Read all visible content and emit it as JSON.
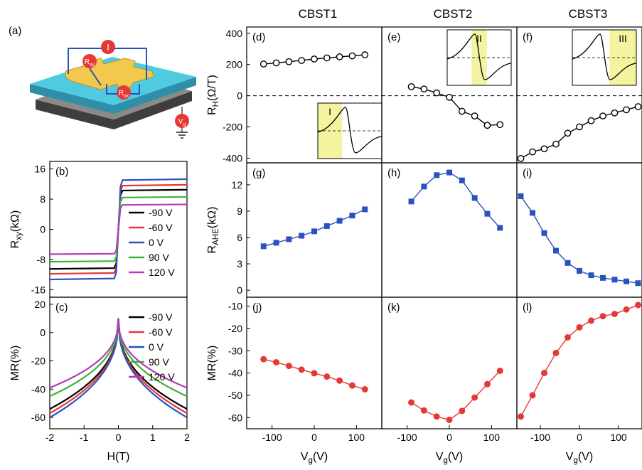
{
  "column_titles": [
    "CBST1",
    "CBST2",
    "CBST3"
  ],
  "panel_a": {
    "letter": "(a)",
    "labels": {
      "current": "I",
      "rxy": "R",
      "rxy_sub": "xy",
      "rxx": "R",
      "rxx_sub": "xx",
      "vg": "V",
      "vg_sub": "g"
    },
    "colors": {
      "top": "#4ecbe0",
      "side": "#2f8fa8",
      "base_top": "#8a8a8a",
      "base_side": "#3e3e3e",
      "hallbar": "#f2c94c",
      "wire": "#2a52be",
      "probe": "#e53935"
    }
  },
  "chart_data": [
    {
      "id": "b",
      "letter": "(b)",
      "type": "line",
      "ylabel": "R",
      "ylabel_sub": "xy",
      "ylabel_unit": "(kΩ)",
      "xlim": [
        -2,
        2
      ],
      "ylim": [
        -18,
        18
      ],
      "yticks": [
        -16,
        -8,
        0,
        8,
        16
      ],
      "ytick_labels": [
        "-16",
        "-8",
        "0",
        "8",
        "16"
      ],
      "legend": "right",
      "series": [
        {
          "name": "-90 V",
          "color": "#000000",
          "saturation": 10.5
        },
        {
          "name": "-60 V",
          "color": "#e53935",
          "saturation": 11.8
        },
        {
          "name": "0 V",
          "color": "#2a52be",
          "saturation": 13.3
        },
        {
          "name": "90 V",
          "color": "#3cb43c",
          "saturation": 8.6
        },
        {
          "name": "120 V",
          "color": "#b23cb4",
          "saturation": 6.6
        }
      ]
    },
    {
      "id": "c",
      "letter": "(c)",
      "type": "line",
      "ylabel": "MR(%)",
      "xlabel": "H(T)",
      "xlim": [
        -2,
        2
      ],
      "ylim": [
        -68,
        25
      ],
      "xticks": [
        -2,
        -1,
        0,
        1,
        2
      ],
      "xtick_labels": [
        "-2",
        "-1",
        "0",
        "1",
        "2"
      ],
      "yticks": [
        -60,
        -40,
        -20,
        0,
        20
      ],
      "ytick_labels": [
        "-60",
        "-40",
        "-20",
        "0",
        "20"
      ],
      "legend": "right",
      "series": [
        {
          "name": "-90 V",
          "color": "#000000",
          "edge": -54
        },
        {
          "name": "-60 V",
          "color": "#e53935",
          "edge": -57
        },
        {
          "name": "0 V",
          "color": "#2a52be",
          "edge": -60
        },
        {
          "name": "90 V",
          "color": "#3cb43c",
          "edge": -45
        },
        {
          "name": "120 V",
          "color": "#b23cb4",
          "edge": -39
        }
      ]
    },
    {
      "id": "d",
      "letter": "(d)",
      "type": "line",
      "marker": "open-circle",
      "color": "#000000",
      "ylabel": "R",
      "ylabel_sub": "H",
      "ylabel_unit": "(Ω/T)",
      "xlim": [
        -160,
        160
      ],
      "ylim": [
        -430,
        440
      ],
      "yticks": [
        -400,
        -200,
        0,
        200,
        400
      ],
      "ytick_labels": [
        "-400",
        "-200",
        "0",
        "200",
        "400"
      ],
      "x": [
        -120,
        -90,
        -60,
        -30,
        0,
        30,
        60,
        90,
        120
      ],
      "y": [
        203,
        210,
        218,
        226,
        235,
        242,
        249,
        255,
        262
      ],
      "inset": {
        "label": "I",
        "shade": "left"
      }
    },
    {
      "id": "e",
      "letter": "(e)",
      "type": "line",
      "marker": "open-circle",
      "color": "#000000",
      "xlim": [
        -160,
        160
      ],
      "ylim": [
        -430,
        440
      ],
      "x": [
        -90,
        -60,
        -30,
        0,
        30,
        60,
        90,
        120
      ],
      "y": [
        58,
        43,
        18,
        -10,
        -100,
        -130,
        -190,
        -185
      ],
      "inset": {
        "label": "II",
        "shade": "middle"
      }
    },
    {
      "id": "f",
      "letter": "(f)",
      "type": "line",
      "marker": "open-circle",
      "color": "#000000",
      "xlim": [
        -160,
        160
      ],
      "ylim": [
        -430,
        440
      ],
      "x": [
        -150,
        -120,
        -90,
        -60,
        -30,
        0,
        30,
        60,
        90,
        120,
        150
      ],
      "y": [
        -402,
        -360,
        -340,
        -310,
        -240,
        -200,
        -160,
        -130,
        -110,
        -90,
        -70
      ],
      "inset": {
        "label": "III",
        "shade": "right"
      }
    },
    {
      "id": "g",
      "letter": "(g)",
      "type": "line",
      "marker": "filled-square",
      "color": "#2a52be",
      "ylabel": "R",
      "ylabel_sub": "AHE",
      "ylabel_unit": "(kΩ)",
      "xlim": [
        -160,
        160
      ],
      "ylim": [
        -0.8,
        14.5
      ],
      "yticks": [
        0,
        3,
        6,
        9,
        12
      ],
      "ytick_labels": [
        "0",
        "3",
        "6",
        "9",
        "12"
      ],
      "x": [
        -120,
        -90,
        -60,
        -30,
        0,
        30,
        60,
        90,
        120
      ],
      "y": [
        5.0,
        5.4,
        5.8,
        6.2,
        6.7,
        7.3,
        7.9,
        8.5,
        9.2
      ]
    },
    {
      "id": "h",
      "letter": "(h)",
      "type": "line",
      "marker": "filled-square",
      "color": "#2a52be",
      "xlim": [
        -160,
        160
      ],
      "ylim": [
        -0.8,
        14.5
      ],
      "x": [
        -90,
        -60,
        -30,
        0,
        30,
        60,
        90,
        120
      ],
      "y": [
        10.1,
        11.8,
        13.1,
        13.4,
        12.5,
        10.5,
        8.7,
        7.1
      ]
    },
    {
      "id": "i",
      "letter": "(i)",
      "type": "line",
      "marker": "filled-square",
      "color": "#2a52be",
      "xlim": [
        -160,
        160
      ],
      "ylim": [
        -0.8,
        14.5
      ],
      "x": [
        -150,
        -120,
        -90,
        -60,
        -30,
        0,
        30,
        60,
        90,
        120,
        150
      ],
      "y": [
        10.7,
        8.8,
        6.5,
        4.5,
        3.1,
        2.2,
        1.7,
        1.4,
        1.2,
        1.0,
        0.8
      ]
    },
    {
      "id": "j",
      "letter": "(j)",
      "type": "line",
      "marker": "filled-circle",
      "color": "#e53935",
      "ylabel": "MR(%)",
      "xlabel": "V",
      "xlabel_sub": "g",
      "xlabel_unit": "(V)",
      "xlim": [
        -160,
        160
      ],
      "ylim": [
        -65,
        -6
      ],
      "yticks": [
        -60,
        -50,
        -40,
        -30,
        -20,
        -10
      ],
      "ytick_labels": [
        "-60",
        "-50",
        "-40",
        "-30",
        "-20",
        "-10"
      ],
      "xticks": [
        -100,
        0,
        100
      ],
      "xtick_labels": [
        "-100",
        "0",
        "100"
      ],
      "x": [
        -120,
        -90,
        -60,
        -30,
        0,
        30,
        60,
        90,
        120
      ],
      "y": [
        -33.8,
        -35.2,
        -36.8,
        -38.5,
        -40.1,
        -41.6,
        -43.4,
        -45.6,
        -47.3
      ]
    },
    {
      "id": "k",
      "letter": "(k)",
      "type": "line",
      "marker": "filled-circle",
      "color": "#e53935",
      "xlabel": "V",
      "xlabel_sub": "g",
      "xlabel_unit": "(V)",
      "xlim": [
        -160,
        160
      ],
      "ylim": [
        -65,
        -6
      ],
      "xticks": [
        -100,
        0,
        100
      ],
      "xtick_labels": [
        "-100",
        "0",
        "100"
      ],
      "x": [
        -90,
        -60,
        -30,
        0,
        30,
        60,
        90,
        120
      ],
      "y": [
        -53.2,
        -56.8,
        -59.5,
        -61.0,
        -57.0,
        -51.0,
        -45.0,
        -39.0
      ]
    },
    {
      "id": "l",
      "letter": "(l)",
      "type": "line",
      "marker": "filled-circle",
      "color": "#e53935",
      "xlabel": "V",
      "xlabel_sub": "g",
      "xlabel_unit": "(V)",
      "xlim": [
        -160,
        160
      ],
      "ylim": [
        -65,
        -6
      ],
      "xticks": [
        -100,
        0,
        100
      ],
      "xtick_labels": [
        "-100",
        "0",
        "100"
      ],
      "x": [
        -150,
        -120,
        -90,
        -60,
        -30,
        0,
        30,
        60,
        90,
        120,
        150
      ],
      "y": [
        -59.5,
        -50.0,
        -40.0,
        -31.0,
        -24.0,
        -19.5,
        -16.5,
        -14.5,
        -13.5,
        -11.5,
        -9.5
      ]
    }
  ]
}
